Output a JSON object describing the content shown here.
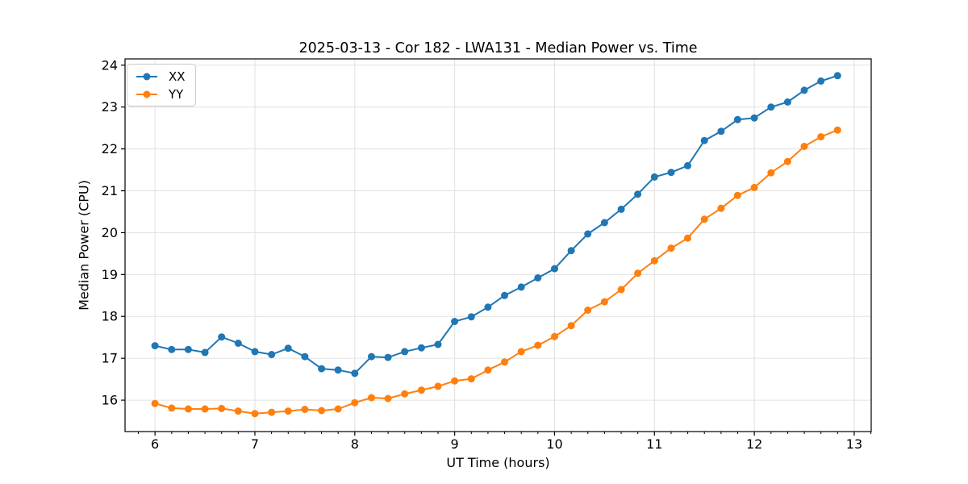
{
  "chart_data": {
    "type": "line",
    "title": "2025-03-13 - Cor 182 - LWA131 - Median Power vs. Time",
    "xlabel": "UT Time (hours)",
    "ylabel": "Median Power (CPU)",
    "xlim": [
      5.7,
      13.17
    ],
    "ylim": [
      15.25,
      24.15
    ],
    "xticks": [
      6,
      7,
      8,
      9,
      10,
      11,
      12,
      13
    ],
    "yticks": [
      16,
      17,
      18,
      19,
      20,
      21,
      22,
      23,
      24
    ],
    "x_minor_tick_step": 0.16667,
    "grid": true,
    "legend_position": "upper left",
    "background": "#ffffff",
    "grid_color": "#e0e0e0",
    "x": [
      6.0,
      6.167,
      6.333,
      6.5,
      6.667,
      6.833,
      7.0,
      7.167,
      7.333,
      7.5,
      7.667,
      7.833,
      8.0,
      8.167,
      8.333,
      8.5,
      8.667,
      8.833,
      9.0,
      9.167,
      9.333,
      9.5,
      9.667,
      9.833,
      10.0,
      10.167,
      10.333,
      10.5,
      10.667,
      10.833,
      11.0,
      11.167,
      11.333,
      11.5,
      11.667,
      11.833,
      12.0,
      12.167,
      12.333,
      12.5,
      12.667,
      12.833
    ],
    "series": [
      {
        "name": "XX",
        "color": "#1f77b4",
        "values": [
          17.3,
          17.21,
          17.21,
          17.14,
          17.51,
          17.36,
          17.16,
          17.09,
          17.24,
          17.04,
          16.75,
          16.72,
          16.64,
          17.04,
          17.02,
          17.16,
          17.25,
          17.33,
          17.88,
          17.99,
          18.22,
          18.5,
          18.7,
          18.92,
          19.14,
          19.57,
          19.97,
          20.24,
          20.56,
          20.92,
          21.33,
          21.44,
          21.6,
          22.2,
          22.42,
          22.7,
          22.74,
          23.0,
          23.12,
          23.4,
          23.62,
          23.75
        ]
      },
      {
        "name": "YY",
        "color": "#ff7f0e",
        "values": [
          15.92,
          15.81,
          15.79,
          15.79,
          15.8,
          15.74,
          15.68,
          15.71,
          15.74,
          15.78,
          15.75,
          15.79,
          15.94,
          16.06,
          16.04,
          16.15,
          16.24,
          16.33,
          16.46,
          16.51,
          16.72,
          16.91,
          17.16,
          17.31,
          17.52,
          17.78,
          18.15,
          18.35,
          18.64,
          19.03,
          19.33,
          19.63,
          19.87,
          20.32,
          20.58,
          20.89,
          21.08,
          21.43,
          21.7,
          22.06,
          22.29,
          22.45
        ]
      }
    ]
  }
}
